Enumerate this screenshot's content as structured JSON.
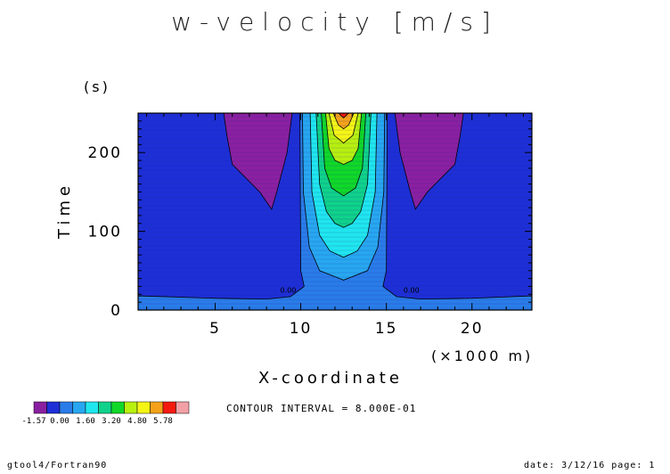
{
  "chart_data": {
    "type": "heatmap",
    "title": "w-velocity [m/s]",
    "xlabel": "X-coordinate",
    "x_unit": "(×1000 m)",
    "ylabel": "Time",
    "y_unit": "(s)",
    "xlim": [
      0.5,
      23.5
    ],
    "ylim": [
      0,
      250
    ],
    "x_ticks": [
      5,
      10,
      15,
      20
    ],
    "y_ticks": [
      0,
      100,
      200
    ],
    "contour_label": "0.00",
    "colorbar": {
      "labels": [
        "-1.57",
        "0.00",
        "1.60",
        "3.20",
        "4.80",
        "5.78"
      ],
      "colors": [
        "#8a20a0",
        "#1e2fd6",
        "#2a7ce8",
        "#28a7f0",
        "#20e6ee",
        "#10d28a",
        "#10d828",
        "#b8f010",
        "#f5f515",
        "#f5a21a",
        "#f51a10",
        "#f2a0a6"
      ]
    },
    "contour_interval": "CONTOUR INTERVAL = 8.000E-01"
  },
  "footer": {
    "left": "gtool4/Fortran90",
    "right": "date: 3/12/16 page: 1"
  }
}
